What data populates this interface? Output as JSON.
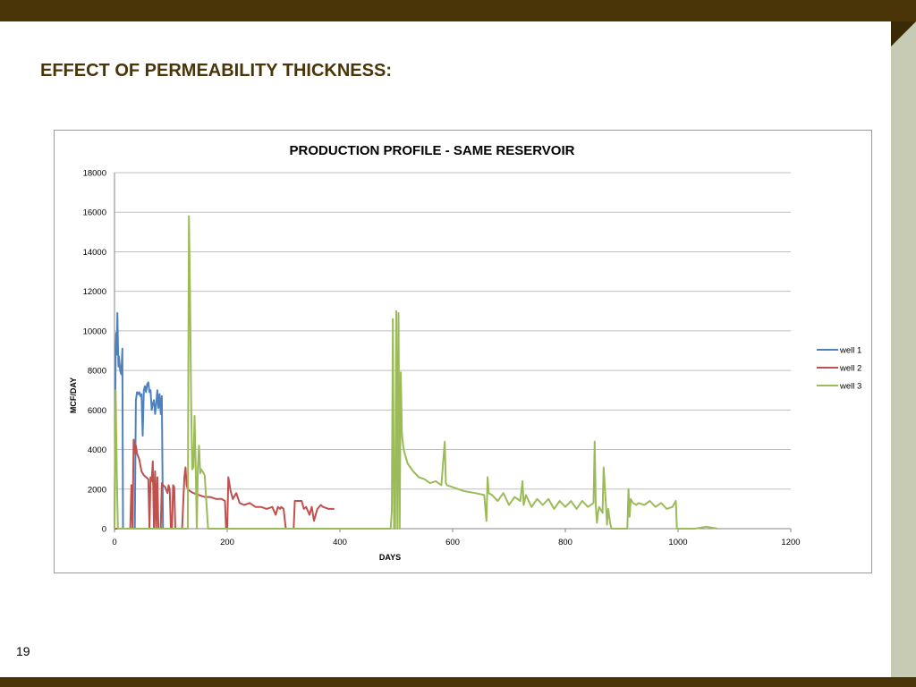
{
  "slide": {
    "title": "EFFECT OF PERMEABILITY THICKNESS:",
    "page_number": "19",
    "colors": {
      "bar": "#4a3508",
      "panel": "#c8cbb4"
    }
  },
  "chart_data": {
    "type": "line",
    "title": "PRODUCTION PROFILE - SAME RESERVOIR",
    "xlabel": "DAYS",
    "ylabel": "MCF/DAY",
    "xlim": [
      0,
      1200
    ],
    "ylim": [
      0,
      18000
    ],
    "xticks": [
      0,
      200,
      400,
      600,
      800,
      1000,
      1200
    ],
    "yticks": [
      0,
      2000,
      4000,
      6000,
      8000,
      10000,
      12000,
      14000,
      16000,
      18000
    ],
    "grid": true,
    "legend_position": "right",
    "series": [
      {
        "name": "well 1",
        "color": "#4f81bd",
        "x": [
          0,
          2,
          3,
          4,
          5,
          6,
          7,
          8,
          10,
          12,
          14,
          15,
          16,
          17,
          18,
          20,
          30,
          36,
          38,
          40,
          42,
          44,
          46,
          48,
          50,
          52,
          54,
          56,
          58,
          60,
          62,
          64,
          66,
          68,
          70,
          72,
          74,
          76,
          78,
          80,
          82,
          84,
          86,
          88
        ],
        "y": [
          0,
          9000,
          9900,
          8800,
          10900,
          9500,
          8200,
          8700,
          8000,
          7800,
          9100,
          0,
          0,
          0,
          0,
          0,
          0,
          0,
          6500,
          6900,
          6800,
          6900,
          6700,
          6800,
          4700,
          7000,
          7200,
          6900,
          7300,
          7400,
          6900,
          7000,
          6000,
          6300,
          6500,
          5800,
          6300,
          7000,
          6100,
          6800,
          5800,
          6700,
          0,
          0
        ]
      },
      {
        "name": "well 2",
        "color": "#c0504d",
        "x": [
          0,
          28,
          30,
          32,
          34,
          36,
          38,
          40,
          44,
          48,
          52,
          56,
          60,
          62,
          64,
          66,
          68,
          70,
          72,
          74,
          76,
          78,
          80,
          82,
          84,
          86,
          90,
          94,
          96,
          98,
          100,
          102,
          104,
          106,
          108,
          112,
          120,
          124,
          126,
          128,
          130,
          134,
          140,
          150,
          160,
          170,
          180,
          190,
          196,
          198,
          200,
          202,
          206,
          210,
          216,
          222,
          230,
          240,
          250,
          260,
          270,
          280,
          286,
          290,
          294,
          296,
          300,
          304,
          306,
          308,
          318,
          320,
          332,
          336,
          340,
          346,
          350,
          354,
          360,
          366,
          370,
          380,
          390
        ],
        "y": [
          0,
          0,
          2200,
          0,
          4500,
          3800,
          4200,
          3800,
          3500,
          2900,
          2700,
          2600,
          2500,
          0,
          2600,
          2400,
          3400,
          0,
          2900,
          0,
          2600,
          0,
          0,
          0,
          2300,
          2200,
          2100,
          1800,
          2200,
          2000,
          0,
          0,
          2200,
          2100,
          0,
          0,
          0,
          2600,
          3100,
          2200,
          2000,
          1900,
          1800,
          1700,
          1600,
          1600,
          1500,
          1500,
          1400,
          0,
          0,
          2600,
          1900,
          1500,
          1800,
          1300,
          1200,
          1300,
          1100,
          1100,
          1000,
          1100,
          700,
          1100,
          1000,
          1100,
          1000,
          0,
          0,
          0,
          0,
          1400,
          1400,
          1000,
          1100,
          700,
          1100,
          400,
          1000,
          1200,
          1100,
          1000,
          1000
        ]
      },
      {
        "name": "well 3",
        "color": "#9bbb59",
        "x": [
          0,
          2,
          4,
          6,
          8,
          10,
          130,
          132,
          134,
          136,
          138,
          140,
          142,
          144,
          146,
          148,
          150,
          152,
          154,
          156,
          160,
          166,
          170,
          172,
          176,
          180,
          490,
          492,
          494,
          496,
          498,
          500,
          502,
          504,
          506,
          508,
          510,
          512,
          514,
          516,
          520,
          530,
          540,
          550,
          560,
          570,
          580,
          586,
          588,
          590,
          600,
          610,
          620,
          640,
          656,
          660,
          662,
          664,
          670,
          680,
          690,
          700,
          710,
          720,
          724,
          726,
          730,
          740,
          750,
          760,
          770,
          780,
          790,
          800,
          810,
          820,
          830,
          840,
          850,
          852,
          854,
          856,
          858,
          860,
          866,
          868,
          872,
          874,
          876,
          880,
          882,
          890,
          900,
          910,
          912,
          914,
          916,
          920,
          926,
          930,
          940,
          950,
          960,
          970,
          980,
          990,
          996,
          998,
          1000,
          1004,
          1010,
          1030,
          1050,
          1070
        ],
        "y": [
          0,
          7000,
          3000,
          0,
          0,
          0,
          0,
          15800,
          12000,
          6300,
          3000,
          3100,
          5700,
          3300,
          0,
          3100,
          4200,
          2800,
          3000,
          2900,
          2700,
          0,
          0,
          0,
          0,
          0,
          0,
          900,
          10600,
          0,
          0,
          11000,
          0,
          10900,
          0,
          7900,
          4800,
          4200,
          3900,
          3700,
          3300,
          2900,
          2600,
          2500,
          2300,
          2400,
          2200,
          4400,
          2300,
          2200,
          2100,
          2000,
          1900,
          1800,
          1700,
          400,
          2600,
          1800,
          1700,
          1400,
          1800,
          1200,
          1600,
          1400,
          2400,
          1200,
          1700,
          1100,
          1500,
          1200,
          1500,
          1000,
          1400,
          1100,
          1400,
          1000,
          1400,
          1100,
          1300,
          4400,
          1200,
          300,
          800,
          1100,
          800,
          3100,
          1200,
          200,
          1000,
          200,
          0,
          0,
          0,
          0,
          2000,
          600,
          1500,
          1300,
          1200,
          1300,
          1200,
          1400,
          1100,
          1300,
          1000,
          1100,
          1400,
          0,
          0,
          0,
          0,
          0,
          100,
          0
        ]
      }
    ]
  }
}
